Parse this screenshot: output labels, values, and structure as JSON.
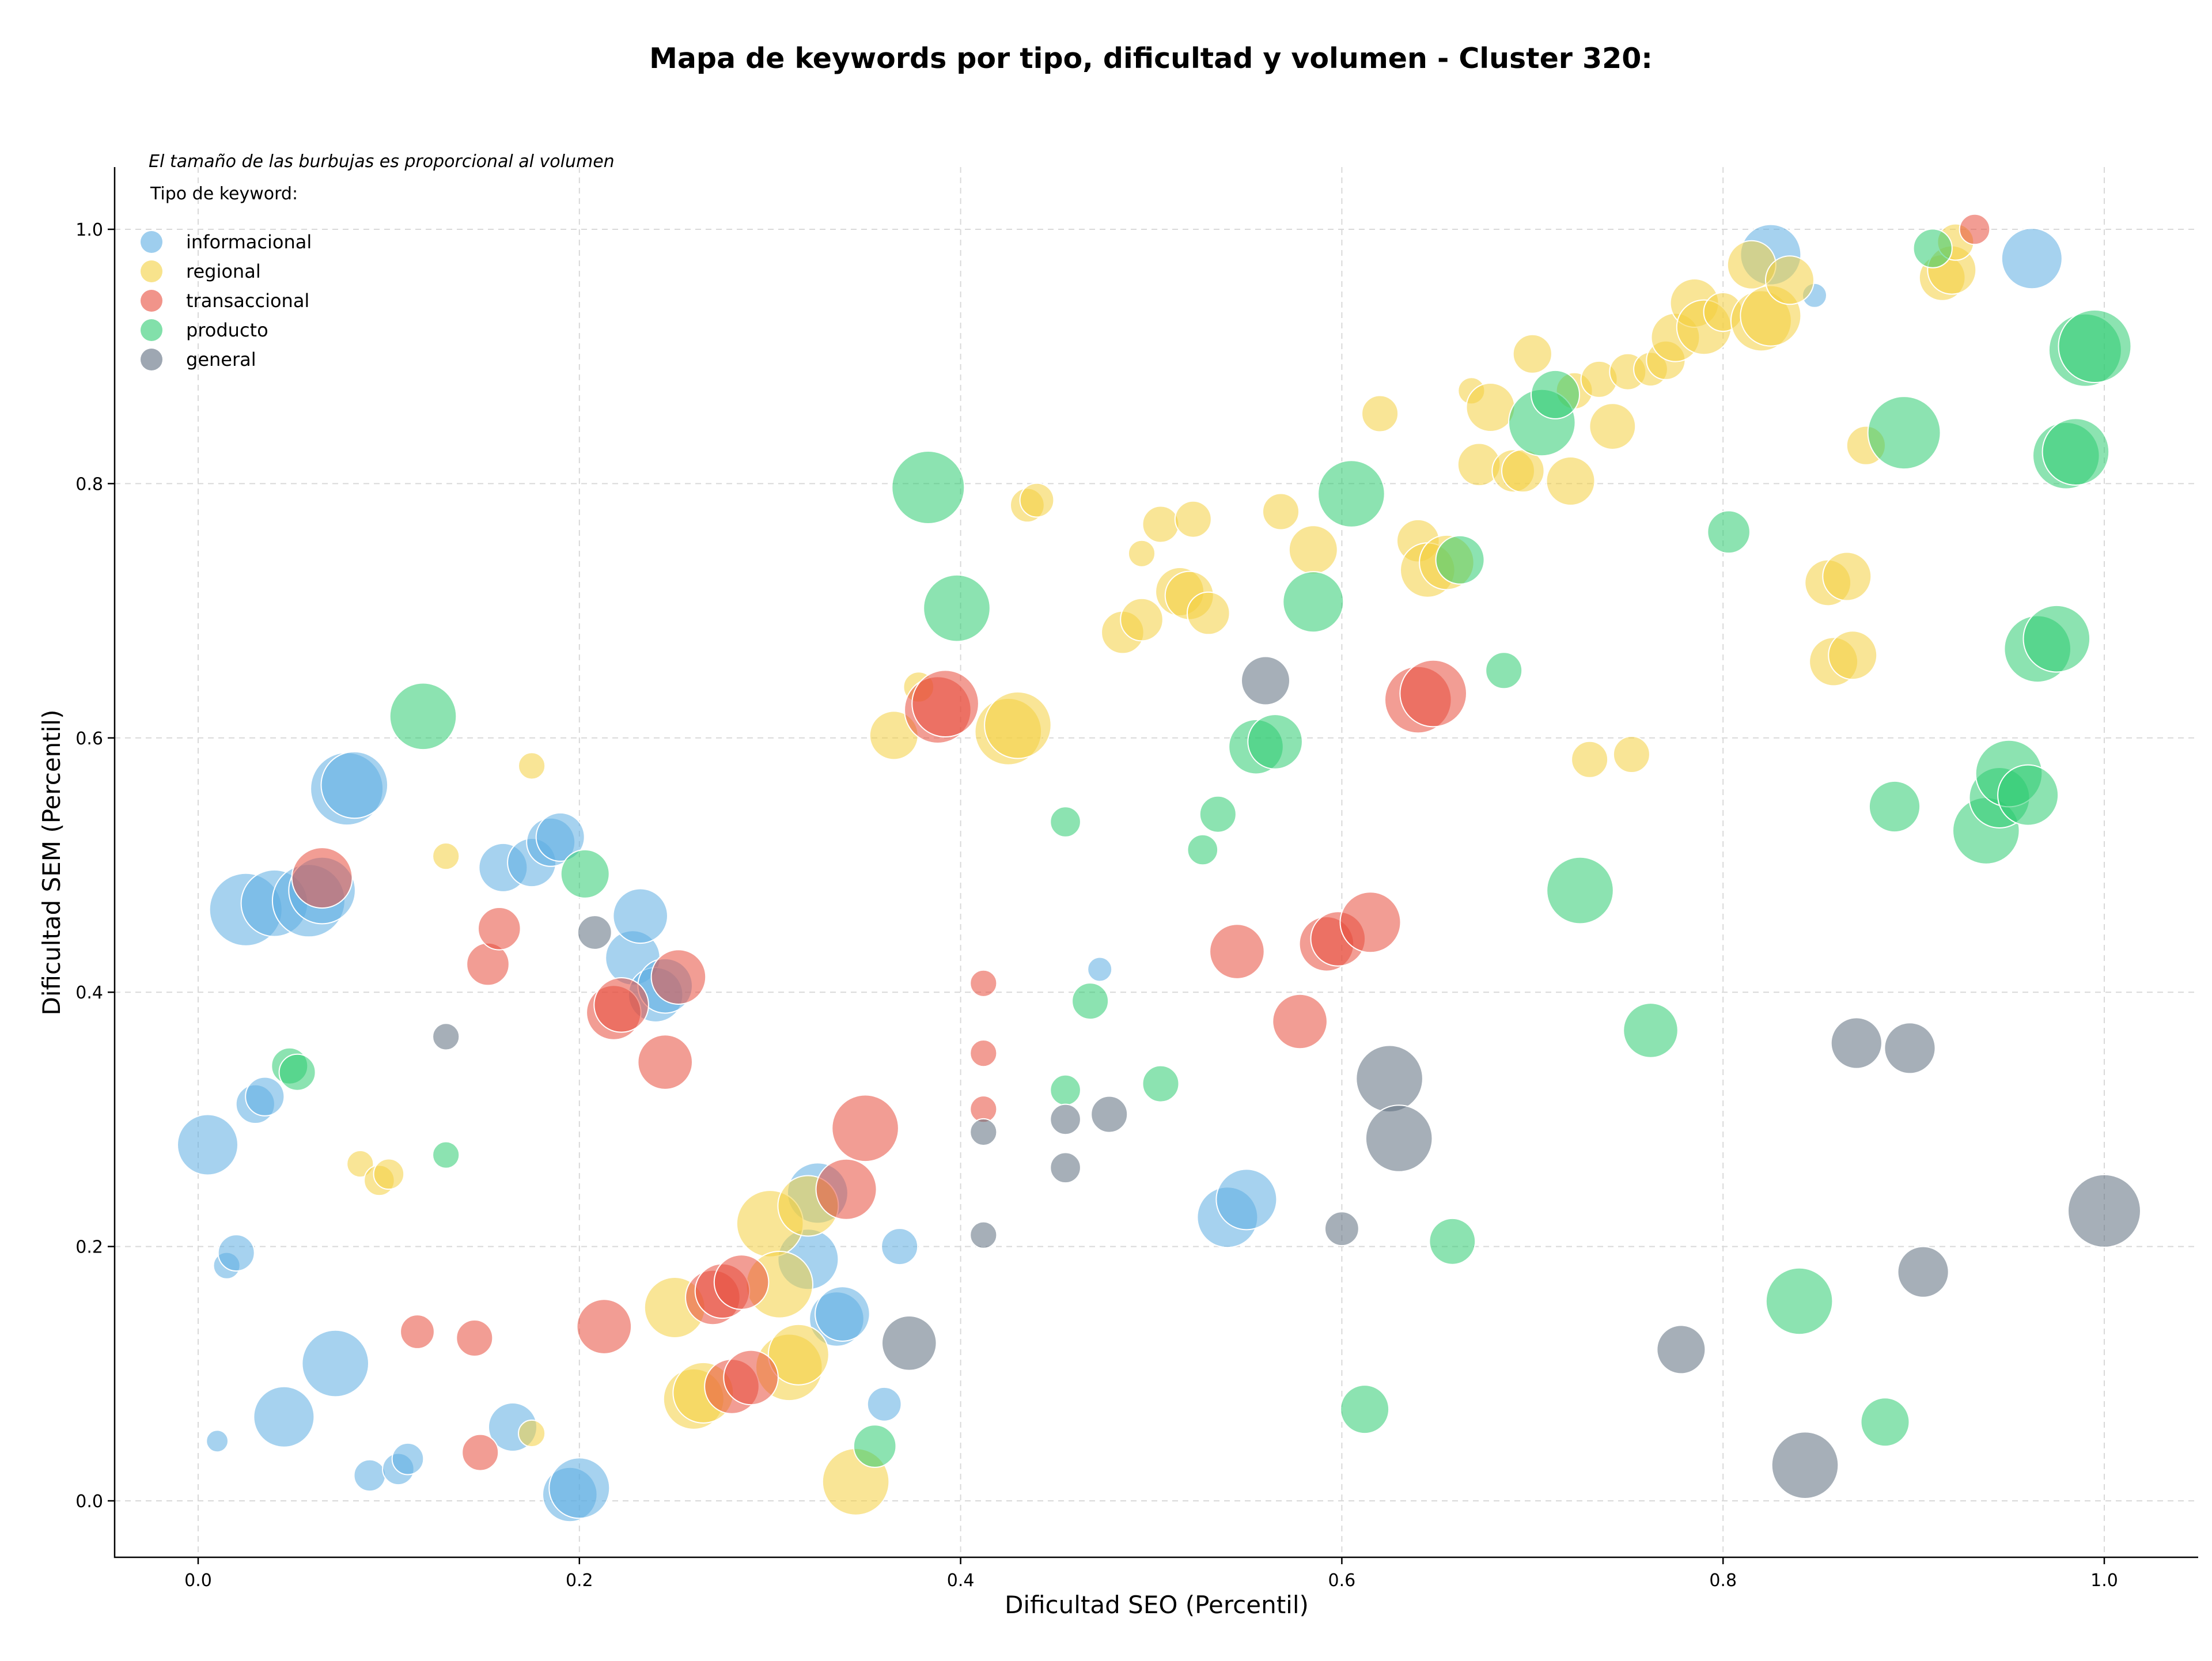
{
  "chart_data": {
    "type": "scatter",
    "title": "Mapa de keywords por tipo, dificultad y volumen - Cluster 320:",
    "xlabel": "Dificultad SEO (Percentil)",
    "ylabel": "Dificultad SEM (Percentil)",
    "xlim": [
      -0.045,
      1.05
    ],
    "ylim": [
      -0.045,
      1.05
    ],
    "x_ticks": [
      "0.0",
      "0.2",
      "0.4",
      "0.6",
      "0.8",
      "1.0"
    ],
    "y_ticks": [
      "0.0",
      "0.2",
      "0.4",
      "0.6",
      "0.8",
      "1.0"
    ],
    "grid": true,
    "note": "El tamaño de las burbujas es proporcional al volumen",
    "legend": {
      "title": "Tipo de keyword:",
      "placement": "top-left"
    },
    "series": [
      {
        "name": "informacional",
        "color": "#5DADE2",
        "points": [
          [
            0.005,
            0.28,
            5
          ],
          [
            0.015,
            0.185,
            2.2
          ],
          [
            0.02,
            0.195,
            3
          ],
          [
            0.025,
            0.465,
            6
          ],
          [
            0.03,
            0.312,
            3.2
          ],
          [
            0.035,
            0.318,
            3.2
          ],
          [
            0.04,
            0.47,
            5.5
          ],
          [
            0.045,
            0.066,
            5
          ],
          [
            0.058,
            0.472,
            6
          ],
          [
            0.065,
            0.48,
            5.5
          ],
          [
            0.072,
            0.108,
            5.5
          ],
          [
            0.078,
            0.56,
            6
          ],
          [
            0.082,
            0.563,
            5.5
          ],
          [
            0.01,
            0.047,
            1.8
          ],
          [
            0.09,
            0.02,
            2.6
          ],
          [
            0.105,
            0.025,
            2.6
          ],
          [
            0.11,
            0.033,
            2.6
          ],
          [
            0.16,
            0.498,
            4
          ],
          [
            0.165,
            0.058,
            4
          ],
          [
            0.175,
            0.502,
            4
          ],
          [
            0.185,
            0.518,
            4
          ],
          [
            0.19,
            0.522,
            4
          ],
          [
            0.195,
            0.005,
            4.5
          ],
          [
            0.2,
            0.01,
            5
          ],
          [
            0.228,
            0.427,
            4.5
          ],
          [
            0.232,
            0.46,
            4.5
          ],
          [
            0.24,
            0.398,
            4.5
          ],
          [
            0.245,
            0.405,
            4.5
          ],
          [
            0.32,
            0.19,
            5
          ],
          [
            0.325,
            0.242,
            5
          ],
          [
            0.335,
            0.143,
            4.5
          ],
          [
            0.338,
            0.147,
            4.5
          ],
          [
            0.36,
            0.076,
            2.8
          ],
          [
            0.368,
            0.2,
            3
          ],
          [
            0.473,
            0.418,
            2
          ],
          [
            0.54,
            0.223,
            5
          ],
          [
            0.55,
            0.237,
            5
          ],
          [
            0.825,
            0.98,
            5
          ],
          [
            0.848,
            0.948,
            2
          ],
          [
            0.962,
            0.977,
            5
          ]
        ]
      },
      {
        "name": "regional",
        "color": "#F4D03F",
        "points": [
          [
            0.085,
            0.265,
            2.2
          ],
          [
            0.095,
            0.252,
            2.5
          ],
          [
            0.1,
            0.257,
            2.5
          ],
          [
            0.13,
            0.507,
            2.2
          ],
          [
            0.175,
            0.578,
            2.2
          ],
          [
            0.175,
            0.053,
            2.2
          ],
          [
            0.25,
            0.152,
            5
          ],
          [
            0.26,
            0.08,
            5
          ],
          [
            0.265,
            0.085,
            5
          ],
          [
            0.3,
            0.218,
            5.5
          ],
          [
            0.305,
            0.17,
            5.5
          ],
          [
            0.31,
            0.105,
            5.5
          ],
          [
            0.315,
            0.115,
            5
          ],
          [
            0.32,
            0.232,
            5
          ],
          [
            0.345,
            0.015,
            5.5
          ],
          [
            0.365,
            0.602,
            4
          ],
          [
            0.378,
            0.64,
            2.5
          ],
          [
            0.425,
            0.605,
            5.5
          ],
          [
            0.43,
            0.61,
            5.5
          ],
          [
            0.435,
            0.783,
            2.8
          ],
          [
            0.44,
            0.787,
            2.8
          ],
          [
            0.485,
            0.683,
            3.5
          ],
          [
            0.495,
            0.693,
            3.5
          ],
          [
            0.495,
            0.745,
            2.2
          ],
          [
            0.505,
            0.768,
            3
          ],
          [
            0.515,
            0.715,
            4
          ],
          [
            0.52,
            0.712,
            4
          ],
          [
            0.522,
            0.772,
            3
          ],
          [
            0.53,
            0.698,
            3.5
          ],
          [
            0.568,
            0.778,
            3
          ],
          [
            0.585,
            0.748,
            4
          ],
          [
            0.62,
            0.855,
            3
          ],
          [
            0.64,
            0.755,
            3.5
          ],
          [
            0.645,
            0.732,
            4.5
          ],
          [
            0.655,
            0.738,
            4.5
          ],
          [
            0.668,
            0.873,
            2.2
          ],
          [
            0.672,
            0.815,
            3.5
          ],
          [
            0.678,
            0.86,
            4
          ],
          [
            0.69,
            0.81,
            3.5
          ],
          [
            0.695,
            0.81,
            3.5
          ],
          [
            0.7,
            0.902,
            3.2
          ],
          [
            0.72,
            0.802,
            4
          ],
          [
            0.722,
            0.873,
            3
          ],
          [
            0.735,
            0.882,
            3
          ],
          [
            0.742,
            0.845,
            3.8
          ],
          [
            0.75,
            0.888,
            3
          ],
          [
            0.762,
            0.89,
            2.8
          ],
          [
            0.77,
            0.897,
            3.2
          ],
          [
            0.775,
            0.915,
            4
          ],
          [
            0.785,
            0.942,
            4
          ],
          [
            0.79,
            0.923,
            4.5
          ],
          [
            0.8,
            0.935,
            3.2
          ],
          [
            0.815,
            0.972,
            4
          ],
          [
            0.82,
            0.928,
            5
          ],
          [
            0.825,
            0.932,
            5
          ],
          [
            0.835,
            0.96,
            4
          ],
          [
            0.855,
            0.722,
            3.8
          ],
          [
            0.858,
            0.66,
            4
          ],
          [
            0.865,
            0.727,
            4
          ],
          [
            0.868,
            0.665,
            4
          ],
          [
            0.875,
            0.83,
            3.2
          ],
          [
            0.915,
            0.962,
            3.8
          ],
          [
            0.92,
            0.968,
            4
          ],
          [
            0.922,
            0.99,
            3
          ],
          [
            0.73,
            0.583,
            3
          ],
          [
            0.752,
            0.587,
            3
          ]
        ]
      },
      {
        "name": "transaccional",
        "color": "#E74C3C",
        "points": [
          [
            0.065,
            0.49,
            5
          ],
          [
            0.115,
            0.133,
            2.8
          ],
          [
            0.145,
            0.128,
            3
          ],
          [
            0.148,
            0.038,
            3
          ],
          [
            0.152,
            0.422,
            3.5
          ],
          [
            0.158,
            0.45,
            3.5
          ],
          [
            0.213,
            0.137,
            4.5
          ],
          [
            0.218,
            0.384,
            4.5
          ],
          [
            0.222,
            0.39,
            4.5
          ],
          [
            0.245,
            0.345,
            4.5
          ],
          [
            0.252,
            0.412,
            4.5
          ],
          [
            0.27,
            0.16,
            4.5
          ],
          [
            0.275,
            0.165,
            4.5
          ],
          [
            0.28,
            0.09,
            4.5
          ],
          [
            0.285,
            0.172,
            4.5
          ],
          [
            0.29,
            0.097,
            4.5
          ],
          [
            0.34,
            0.245,
            5
          ],
          [
            0.35,
            0.293,
            5.5
          ],
          [
            0.388,
            0.622,
            5.5
          ],
          [
            0.392,
            0.627,
            5.5
          ],
          [
            0.412,
            0.407,
            2.2
          ],
          [
            0.412,
            0.352,
            2.2
          ],
          [
            0.412,
            0.308,
            2.2
          ],
          [
            0.545,
            0.432,
            4.5
          ],
          [
            0.578,
            0.377,
            4.5
          ],
          [
            0.592,
            0.438,
            4.5
          ],
          [
            0.598,
            0.442,
            4.5
          ],
          [
            0.615,
            0.455,
            5
          ],
          [
            0.64,
            0.63,
            5.5
          ],
          [
            0.648,
            0.635,
            5.5
          ],
          [
            0.932,
            1.0,
            2.5
          ]
        ]
      },
      {
        "name": "producto",
        "color": "#2ECC71",
        "points": [
          [
            0.048,
            0.342,
            3
          ],
          [
            0.052,
            0.337,
            3
          ],
          [
            0.118,
            0.617,
            5.5
          ],
          [
            0.13,
            0.272,
            2.2
          ],
          [
            0.203,
            0.493,
            4
          ],
          [
            0.355,
            0.043,
            3.5
          ],
          [
            0.383,
            0.797,
            6
          ],
          [
            0.398,
            0.702,
            5.5
          ],
          [
            0.455,
            0.534,
            2.5
          ],
          [
            0.468,
            0.393,
            3
          ],
          [
            0.455,
            0.323,
            2.5
          ],
          [
            0.505,
            0.328,
            3
          ],
          [
            0.527,
            0.512,
            2.5
          ],
          [
            0.535,
            0.54,
            3
          ],
          [
            0.555,
            0.593,
            4.5
          ],
          [
            0.565,
            0.597,
            4.5
          ],
          [
            0.585,
            0.707,
            5
          ],
          [
            0.605,
            0.792,
            5.5
          ],
          [
            0.612,
            0.072,
            4
          ],
          [
            0.658,
            0.204,
            3.8
          ],
          [
            0.662,
            0.74,
            4
          ],
          [
            0.685,
            0.653,
            3
          ],
          [
            0.705,
            0.848,
            5.5
          ],
          [
            0.712,
            0.87,
            4
          ],
          [
            0.725,
            0.48,
            5.5
          ],
          [
            0.762,
            0.37,
            4.5
          ],
          [
            0.803,
            0.762,
            3.5
          ],
          [
            0.84,
            0.157,
            5.5
          ],
          [
            0.885,
            0.062,
            4
          ],
          [
            0.89,
            0.546,
            4.2
          ],
          [
            0.895,
            0.84,
            6
          ],
          [
            0.91,
            0.985,
            3.2
          ],
          [
            0.938,
            0.527,
            5.5
          ],
          [
            0.945,
            0.553,
            5
          ],
          [
            0.95,
            0.572,
            5.5
          ],
          [
            0.96,
            0.555,
            5
          ],
          [
            0.965,
            0.67,
            5.5
          ],
          [
            0.975,
            0.678,
            5.5
          ],
          [
            0.98,
            0.822,
            5.5
          ],
          [
            0.985,
            0.825,
            5.5
          ],
          [
            0.99,
            0.905,
            6
          ],
          [
            0.995,
            0.908,
            6
          ]
        ]
      },
      {
        "name": "general",
        "color": "#5D6D7E",
        "points": [
          [
            0.13,
            0.365,
            2.2
          ],
          [
            0.208,
            0.447,
            2.8
          ],
          [
            0.373,
            0.124,
            4.5
          ],
          [
            0.412,
            0.29,
            2.2
          ],
          [
            0.412,
            0.209,
            2.2
          ],
          [
            0.455,
            0.3,
            2.5
          ],
          [
            0.455,
            0.262,
            2.5
          ],
          [
            0.478,
            0.304,
            3
          ],
          [
            0.56,
            0.645,
            4
          ],
          [
            0.6,
            0.214,
            2.8
          ],
          [
            0.625,
            0.332,
            5.5
          ],
          [
            0.63,
            0.285,
            5.5
          ],
          [
            0.778,
            0.119,
            4
          ],
          [
            0.843,
            0.028,
            5.5
          ],
          [
            0.87,
            0.36,
            4.2
          ],
          [
            0.898,
            0.356,
            4.2
          ],
          [
            0.905,
            0.18,
            4.2
          ],
          [
            1.0,
            0.228,
            6
          ]
        ]
      }
    ]
  }
}
